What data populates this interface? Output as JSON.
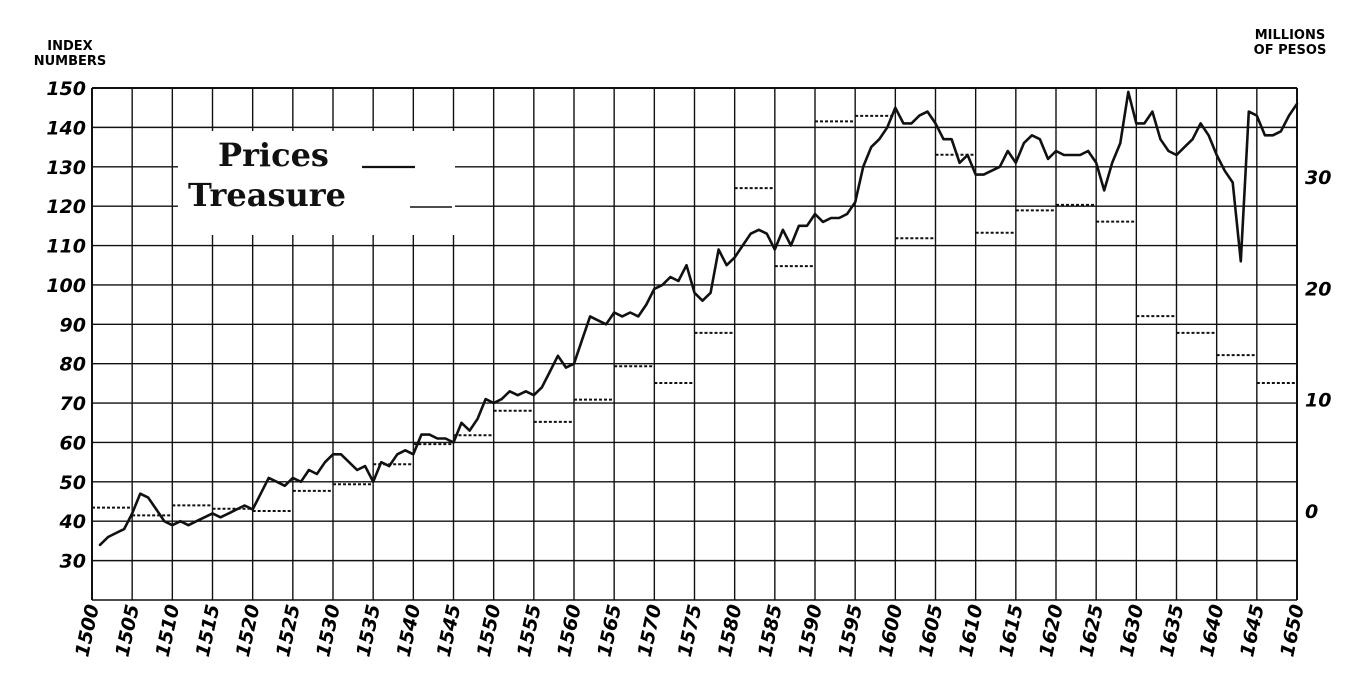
{
  "chart_data": {
    "type": "line",
    "title": "",
    "left_axis": {
      "title_lines": [
        "INDEX",
        "NUMBERS"
      ],
      "ylim": [
        20,
        150
      ],
      "ticks": [
        "150",
        "140",
        "130",
        "120",
        "110",
        "100",
        "90",
        "80",
        "70",
        "60",
        "50",
        "40",
        "30"
      ]
    },
    "right_axis": {
      "title_lines": [
        "MILLIONS",
        "OF PESOS"
      ],
      "ylim": [
        -8,
        38
      ],
      "ticks": [
        "30",
        "20",
        "10",
        "0"
      ]
    },
    "x_axis": {
      "xlim": [
        1500,
        1650
      ],
      "ticks": [
        "1500",
        "1505",
        "1510",
        "1515",
        "1520",
        "1525",
        "1530",
        "1535",
        "1540",
        "1545",
        "1550",
        "1555",
        "1560",
        "1565",
        "1570",
        "1575",
        "1580",
        "1585",
        "1590",
        "1595",
        "1600",
        "1605",
        "1610",
        "1615",
        "1620",
        "1625",
        "1630",
        "1635",
        "1640",
        "1645",
        "1650"
      ]
    },
    "legend": [
      "Prices",
      "Treasure"
    ],
    "grid": true,
    "series": [
      {
        "name": "Prices",
        "axis": "left",
        "style": "solid",
        "x": [
          1501,
          1502,
          1503,
          1504,
          1505,
          1506,
          1507,
          1508,
          1509,
          1510,
          1511,
          1512,
          1513,
          1514,
          1515,
          1516,
          1517,
          1518,
          1519,
          1520,
          1521,
          1522,
          1523,
          1524,
          1525,
          1526,
          1527,
          1528,
          1529,
          1530,
          1531,
          1532,
          1533,
          1534,
          1535,
          1536,
          1537,
          1538,
          1539,
          1540,
          1541,
          1542,
          1543,
          1544,
          1545,
          1546,
          1547,
          1548,
          1549,
          1550,
          1551,
          1552,
          1553,
          1554,
          1555,
          1556,
          1557,
          1558,
          1559,
          1560,
          1561,
          1562,
          1563,
          1564,
          1565,
          1566,
          1567,
          1568,
          1569,
          1570,
          1571,
          1572,
          1573,
          1574,
          1575,
          1576,
          1577,
          1578,
          1579,
          1580,
          1581,
          1582,
          1583,
          1584,
          1585,
          1586,
          1587,
          1588,
          1589,
          1590,
          1591,
          1592,
          1593,
          1594,
          1595,
          1596,
          1597,
          1598,
          1599,
          1600,
          1601,
          1602,
          1603,
          1604,
          1605,
          1606,
          1607,
          1608,
          1609,
          1610,
          1611,
          1612,
          1613,
          1614,
          1615,
          1616,
          1617,
          1618,
          1619,
          1620,
          1621,
          1622,
          1623,
          1624,
          1625,
          1626,
          1627,
          1628,
          1629,
          1630,
          1631,
          1632,
          1633,
          1634,
          1635,
          1636,
          1637,
          1638,
          1639,
          1640,
          1641,
          1642,
          1643,
          1644,
          1645,
          1646,
          1647,
          1648,
          1649,
          1650
        ],
        "values": [
          34,
          36,
          37,
          38,
          42,
          47,
          46,
          43,
          40,
          39,
          40,
          39,
          40,
          41,
          42,
          41,
          42,
          43,
          44,
          43,
          47,
          51,
          50,
          49,
          51,
          50,
          53,
          52,
          55,
          57,
          57,
          55,
          53,
          54,
          50,
          55,
          54,
          57,
          58,
          57,
          62,
          62,
          61,
          61,
          60,
          65,
          63,
          66,
          71,
          70,
          71,
          73,
          72,
          73,
          72,
          74,
          78,
          82,
          79,
          80,
          86,
          92,
          91,
          90,
          93,
          92,
          93,
          92,
          95,
          99,
          100,
          102,
          101,
          105,
          98,
          96,
          98,
          109,
          105,
          107,
          110,
          113,
          114,
          113,
          109,
          114,
          110,
          115,
          115,
          118,
          116,
          117,
          117,
          118,
          121,
          130,
          135,
          137,
          140,
          145,
          141,
          141,
          143,
          144,
          141,
          137,
          137,
          131,
          133,
          128,
          128,
          129,
          130,
          134,
          131,
          136,
          138,
          137,
          132,
          134,
          133,
          133,
          133,
          134,
          131,
          124,
          131,
          136,
          149,
          141,
          141,
          144,
          137,
          134,
          133,
          135,
          137,
          141,
          138,
          133,
          129,
          126,
          106,
          144,
          143,
          138,
          138,
          139,
          143,
          146
        ],
        "color": "#111111"
      },
      {
        "name": "Treasure",
        "axis": "right",
        "style": "dashed-step",
        "segments": [
          {
            "from": 1500,
            "to": 1505,
            "value": 0.3
          },
          {
            "from": 1505,
            "to": 1510,
            "value": -0.4
          },
          {
            "from": 1510,
            "to": 1515,
            "value": 0.5
          },
          {
            "from": 1515,
            "to": 1520,
            "value": 0.2
          },
          {
            "from": 1520,
            "to": 1525,
            "value": 0.0
          },
          {
            "from": 1525,
            "to": 1530,
            "value": 1.8
          },
          {
            "from": 1530,
            "to": 1535,
            "value": 2.4
          },
          {
            "from": 1535,
            "to": 1540,
            "value": 4.2
          },
          {
            "from": 1540,
            "to": 1545,
            "value": 6.0
          },
          {
            "from": 1545,
            "to": 1550,
            "value": 6.8
          },
          {
            "from": 1550,
            "to": 1555,
            "value": 9.0
          },
          {
            "from": 1555,
            "to": 1560,
            "value": 8.0
          },
          {
            "from": 1560,
            "to": 1565,
            "value": 10.0
          },
          {
            "from": 1565,
            "to": 1570,
            "value": 13.0
          },
          {
            "from": 1570,
            "to": 1575,
            "value": 11.5
          },
          {
            "from": 1575,
            "to": 1580,
            "value": 16.0
          },
          {
            "from": 1580,
            "to": 1585,
            "value": 29.0
          },
          {
            "from": 1585,
            "to": 1590,
            "value": 22.0
          },
          {
            "from": 1590,
            "to": 1595,
            "value": 35.0
          },
          {
            "from": 1595,
            "to": 1600,
            "value": 35.5
          },
          {
            "from": 1600,
            "to": 1605,
            "value": 24.5
          },
          {
            "from": 1605,
            "to": 1610,
            "value": 32.0
          },
          {
            "from": 1610,
            "to": 1615,
            "value": 25.0
          },
          {
            "from": 1615,
            "to": 1620,
            "value": 27.0
          },
          {
            "from": 1620,
            "to": 1625,
            "value": 27.5
          },
          {
            "from": 1625,
            "to": 1630,
            "value": 26.0
          },
          {
            "from": 1630,
            "to": 1635,
            "value": 17.5
          },
          {
            "from": 1635,
            "to": 1640,
            "value": 16.0
          },
          {
            "from": 1640,
            "to": 1645,
            "value": 14.0
          },
          {
            "from": 1645,
            "to": 1650,
            "value": 11.5
          }
        ],
        "color": "#111111"
      }
    ]
  }
}
